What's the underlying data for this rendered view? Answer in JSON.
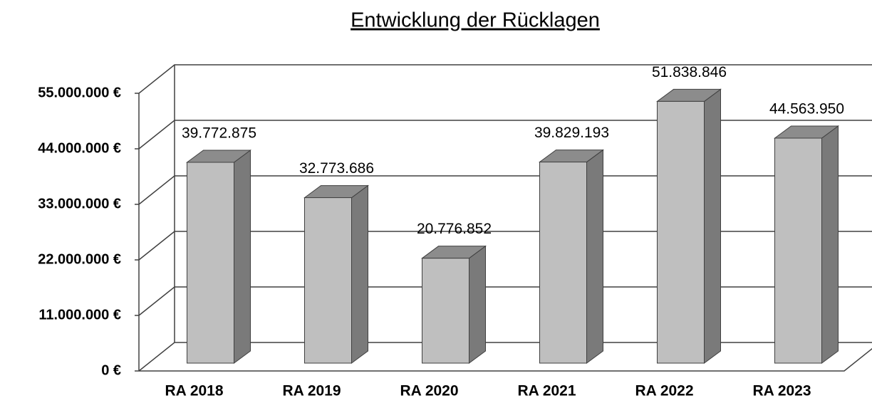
{
  "chart_data": {
    "type": "bar3d",
    "title": "Entwicklung der Rücklagen",
    "categories": [
      "RA 2018",
      "RA 2019",
      "RA 2020",
      "RA 2021",
      "RA 2022",
      "RA 2023"
    ],
    "values": [
      39772875,
      32773686,
      20776852,
      39829193,
      51838846,
      44563950
    ],
    "value_labels": [
      "39.772.875",
      "32.773.686",
      "20.776.852",
      "39.829.193",
      "51.838.846",
      "44.563.950"
    ],
    "color": "#bfbfbf",
    "ylim": [
      0,
      55000000
    ],
    "yticks": [
      {
        "value": 0,
        "label": "0 €"
      },
      {
        "value": 11000000,
        "label": "11.000.000 €"
      },
      {
        "value": 22000000,
        "label": "22.000.000 €"
      },
      {
        "value": 33000000,
        "label": "33.000.000 €"
      },
      {
        "value": 44000000,
        "label": "44.000.000 €"
      },
      {
        "value": 55000000,
        "label": "55.000.000 €"
      }
    ],
    "grid": true
  }
}
